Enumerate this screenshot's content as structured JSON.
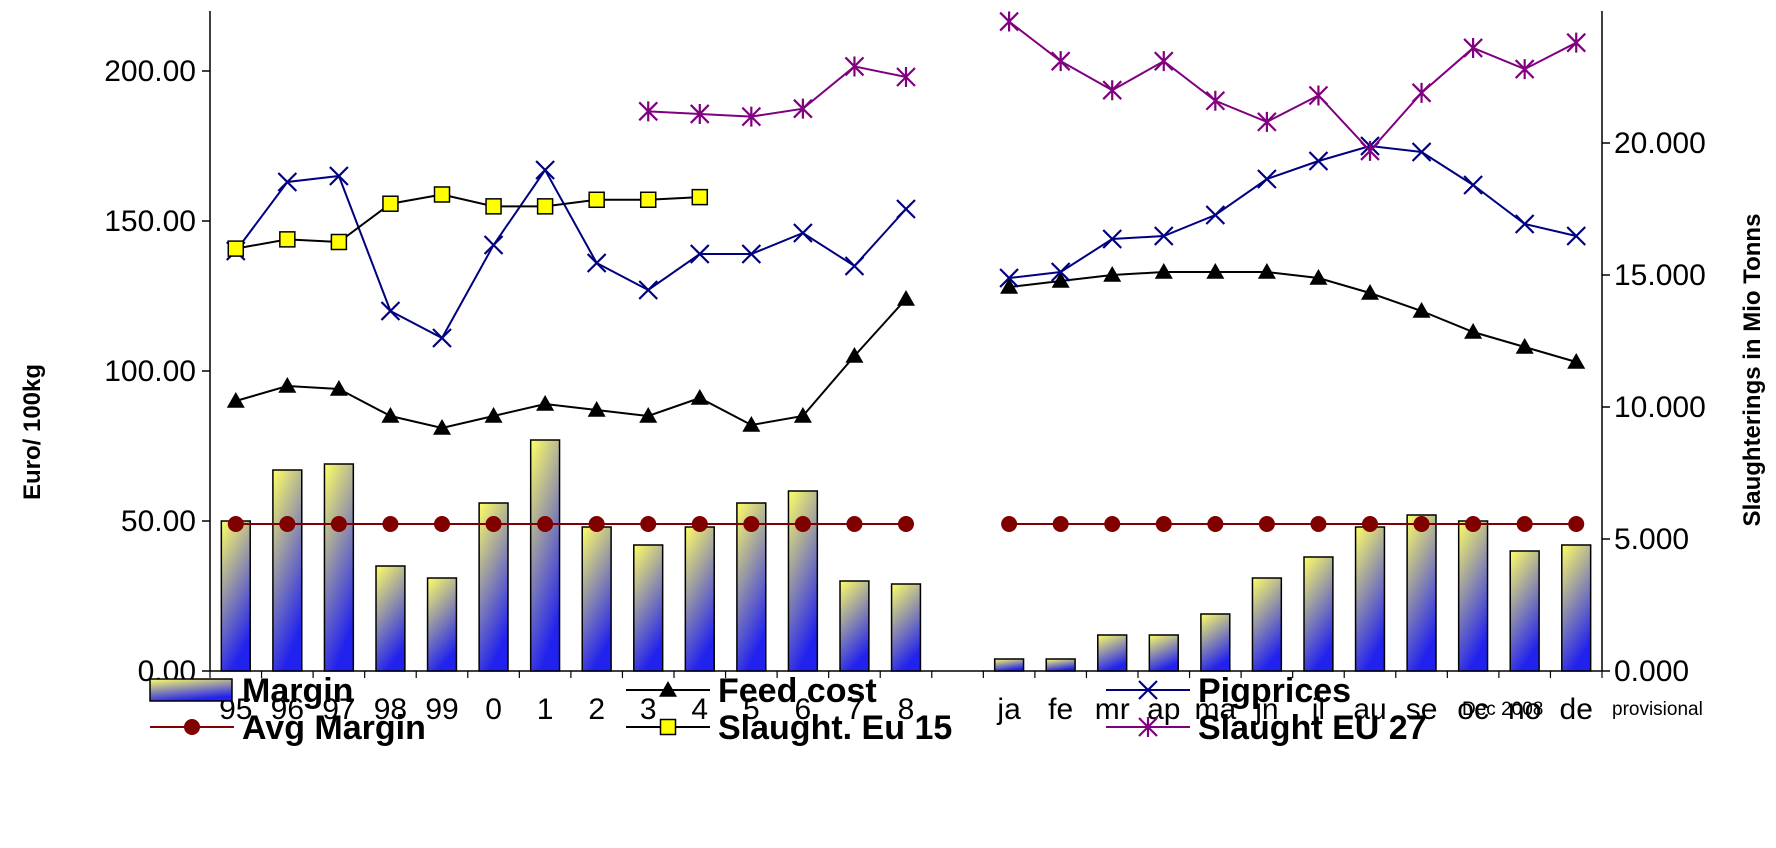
{
  "chart_data": {
    "type": "bar",
    "categories": [
      "95",
      "96",
      "97",
      "98",
      "99",
      "0",
      "1",
      "2",
      "3",
      "4",
      "5",
      "6",
      "7",
      "8",
      "",
      "ja",
      "fe",
      "mr",
      "ap",
      "ma",
      "jn",
      "jl",
      "au",
      "se",
      "oc",
      "no",
      "de"
    ],
    "ylabel": "Euro/ 100kg",
    "y2label": "Slaughterings in Mio Tonns",
    "ylim": [
      0,
      220
    ],
    "y2lim": [
      0,
      25
    ],
    "yticks": [
      "0.00",
      "50.00",
      "100.00",
      "150.00",
      "200.00"
    ],
    "y2ticks": [
      "0.000",
      "5.000",
      "10.000",
      "15.000",
      "20.000"
    ],
    "note_date": "Dec 2008",
    "note_status": "provisional",
    "legend_position": "bottom",
    "colors": {
      "margin_bar_top": "#ffff66",
      "margin_bar_bottom": "#2222ee",
      "feed_cost": "#000000",
      "pigprices": "#000080",
      "avg_margin": "#800000",
      "avg_margin_marker": "#800000",
      "slaught_eu15_marker": "#ffff00",
      "slaught_eu27": "#800080"
    },
    "series": [
      {
        "name": "Margin",
        "type": "bar",
        "axis": "left",
        "values": [
          50,
          67,
          69,
          35,
          31,
          56,
          77,
          48,
          42,
          48,
          56,
          60,
          30,
          29,
          null,
          4,
          4,
          12,
          12,
          19,
          31,
          38,
          48,
          52,
          50,
          40,
          42
        ]
      },
      {
        "name": "Feed cost",
        "type": "line",
        "axis": "left",
        "marker": "triangle",
        "values": [
          90,
          95,
          94,
          85,
          81,
          85,
          89,
          87,
          85,
          91,
          82,
          85,
          105,
          124,
          null,
          128,
          130,
          132,
          133,
          133,
          133,
          131,
          126,
          120,
          113,
          108,
          103
        ]
      },
      {
        "name": "Pigprices",
        "type": "line",
        "axis": "left",
        "marker": "x",
        "values": [
          140,
          163,
          165,
          120,
          111,
          142,
          167,
          136,
          127,
          139,
          139,
          146,
          135,
          154,
          null,
          131,
          133,
          144,
          145,
          152,
          164,
          170,
          175,
          173,
          162,
          149,
          145
        ]
      },
      {
        "name": "Avg Margin",
        "type": "line",
        "axis": "left",
        "marker": "circle",
        "values": [
          49,
          49,
          49,
          49,
          49,
          49,
          49,
          49,
          49,
          49,
          49,
          49,
          49,
          49,
          null,
          49,
          49,
          49,
          49,
          49,
          49,
          49,
          49,
          49,
          49,
          49,
          49
        ]
      },
      {
        "name": "Slaught. Eu 15",
        "type": "line",
        "axis": "right",
        "marker": "square",
        "values": [
          16.0,
          16.35,
          16.25,
          17.7,
          18.05,
          17.6,
          17.6,
          17.85,
          17.85,
          17.95,
          null,
          null,
          null,
          null,
          null,
          null,
          null,
          null,
          null,
          null,
          null,
          null,
          null,
          null,
          null,
          null,
          null
        ]
      },
      {
        "name": "Slaught EU 27",
        "type": "line",
        "axis": "right",
        "marker": "asterisk",
        "values": [
          null,
          null,
          null,
          null,
          null,
          null,
          null,
          null,
          21.2,
          21.1,
          21.0,
          21.3,
          22.9,
          22.5,
          null,
          24.6,
          23.1,
          22.0,
          23.1,
          21.6,
          20.8,
          21.8,
          19.7,
          21.9,
          23.6,
          22.8,
          23.8
        ]
      }
    ]
  }
}
